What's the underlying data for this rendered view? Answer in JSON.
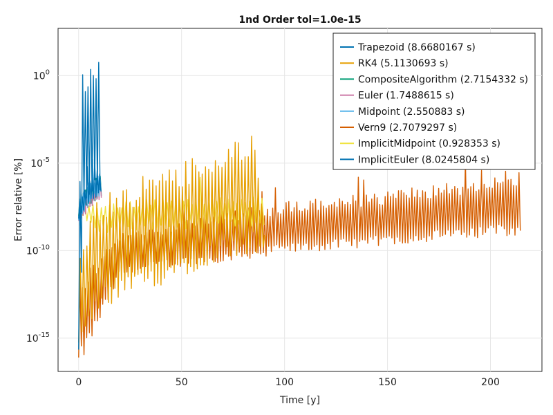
{
  "chart_data": {
    "type": "line",
    "title": "1nd Order tol=1.0e-15",
    "xlabel": "Time [y]",
    "ylabel": "Error relative [%]",
    "x_ticks": [
      0,
      50,
      100,
      150,
      200
    ],
    "x_tick_labels": [
      "0",
      "50",
      "100",
      "150",
      "200"
    ],
    "xlim": [
      -10,
      225
    ],
    "y_scale": "log10",
    "y_ticks_exp": [
      0,
      -5,
      -10,
      -15
    ],
    "y_tick_base": "10",
    "y_tick_exps": [
      "0",
      "-5",
      "-10",
      "-15"
    ],
    "ylim_exp": [
      -16.9,
      2.7
    ],
    "grid": true,
    "legend_position": "top-right",
    "series": [
      {
        "name": "Trapezoid (8.6680167 s)",
        "color": "#0072b2",
        "x_end": 11,
        "envelope": [
          [
            0,
            -16.5,
            -7.3
          ],
          [
            2,
            -8.5,
            0.0
          ],
          [
            4,
            -8.0,
            0.3
          ],
          [
            6,
            -7.8,
            0.5
          ],
          [
            8,
            -7.5,
            1.3
          ],
          [
            10,
            -7.2,
            0.8
          ],
          [
            11,
            -7.0,
            0.4
          ]
        ],
        "period": 1.3
      },
      {
        "name": "RK4 (5.1130693 s)",
        "color": "#e69f00",
        "x_end": 91,
        "envelope": [
          [
            0,
            -16.0,
            -9.0
          ],
          [
            10,
            -13.5,
            -6.8
          ],
          [
            30,
            -12.5,
            -5.8
          ],
          [
            50,
            -11.5,
            -4.8
          ],
          [
            70,
            -10.5,
            -4.2
          ],
          [
            85,
            -10.2,
            -3.2
          ],
          [
            91,
            -10.0,
            -9.5
          ]
        ],
        "period": 1.6
      },
      {
        "name": "CompositeAlgorithm (2.7154332 s)",
        "color": "#009e73",
        "x_end": 11,
        "envelope": [
          [
            0,
            -8.3,
            -7.0
          ],
          [
            5,
            -7.5,
            -6.2
          ],
          [
            11,
            -6.9,
            -5.6
          ]
        ],
        "period": 1.0
      },
      {
        "name": "Euler (1.7488615 s)",
        "color": "#cc79a7",
        "x_end": 11,
        "envelope": [
          [
            0,
            -8.5,
            -7.2
          ],
          [
            5,
            -7.6,
            -6.3
          ],
          [
            11,
            -7.0,
            -5.8
          ]
        ],
        "period": 1.1
      },
      {
        "name": "Midpoint (2.550883 s)",
        "color": "#56b4e9",
        "x_end": 11,
        "envelope": [
          [
            0,
            -8.4,
            -7.1
          ],
          [
            5,
            -7.4,
            -6.1
          ],
          [
            11,
            -6.8,
            -5.5
          ]
        ],
        "period": 0.9
      },
      {
        "name": "Vern9 (2.7079297 s)",
        "color": "#d55e00",
        "x_end": 215,
        "envelope": [
          [
            0,
            -16.8,
            -11.5
          ],
          [
            20,
            -11.5,
            -9.0
          ],
          [
            40,
            -11.0,
            -8.5
          ],
          [
            60,
            -10.8,
            -7.8
          ],
          [
            100,
            -10.2,
            -7.2
          ],
          [
            150,
            -9.7,
            -6.6
          ],
          [
            200,
            -9.2,
            -5.8
          ],
          [
            215,
            -9.1,
            -5.5
          ]
        ],
        "period": 1.3
      },
      {
        "name": "ImplicitMidpoint (0.928353 s)",
        "color": "#f0e442",
        "x_end": 90,
        "envelope": [
          [
            0,
            -8.0,
            -7.0
          ],
          [
            10,
            -9.0,
            -7.3
          ],
          [
            40,
            -8.8,
            -7.0
          ],
          [
            90,
            -8.6,
            -6.8
          ]
        ],
        "period": 2.0
      },
      {
        "name": "ImplicitEuler (8.0245804 s)",
        "color": "#0072b2",
        "x_end": 11,
        "envelope": [
          [
            0,
            -8.2,
            -7.0
          ],
          [
            5,
            -7.3,
            -6.0
          ],
          [
            11,
            -6.7,
            -5.3
          ]
        ],
        "period": 1.2
      }
    ]
  }
}
